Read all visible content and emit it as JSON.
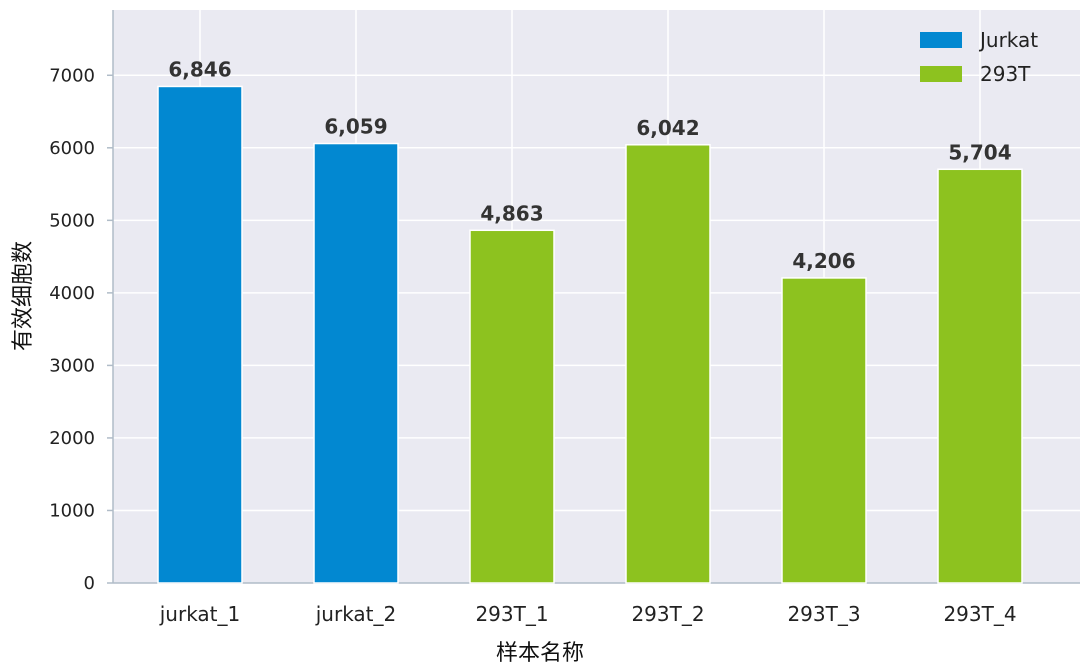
{
  "chart_data": {
    "type": "bar",
    "categories": [
      "jurkat_1",
      "jurkat_2",
      "293T_1",
      "293T_2",
      "293T_3",
      "293T_4"
    ],
    "values": [
      6846,
      6059,
      4863,
      6042,
      4206,
      5704
    ],
    "value_labels": [
      "6,846",
      "6,059",
      "4,863",
      "6,042",
      "4,206",
      "5,704"
    ],
    "groups": [
      "Jurkat",
      "Jurkat",
      "293T",
      "293T",
      "293T",
      "293T"
    ],
    "legend": [
      {
        "name": "Jurkat",
        "color": "#0288d1"
      },
      {
        "name": "293T",
        "color": "#8dc21f"
      }
    ],
    "legend_position": "top-right",
    "xlabel": "样本名称",
    "ylabel": "有效细胞数",
    "ylim": [
      0,
      7900
    ],
    "yticks": [
      0,
      1000,
      2000,
      3000,
      4000,
      5000,
      6000,
      7000
    ],
    "grid": true,
    "background": "#eaeaf2"
  }
}
